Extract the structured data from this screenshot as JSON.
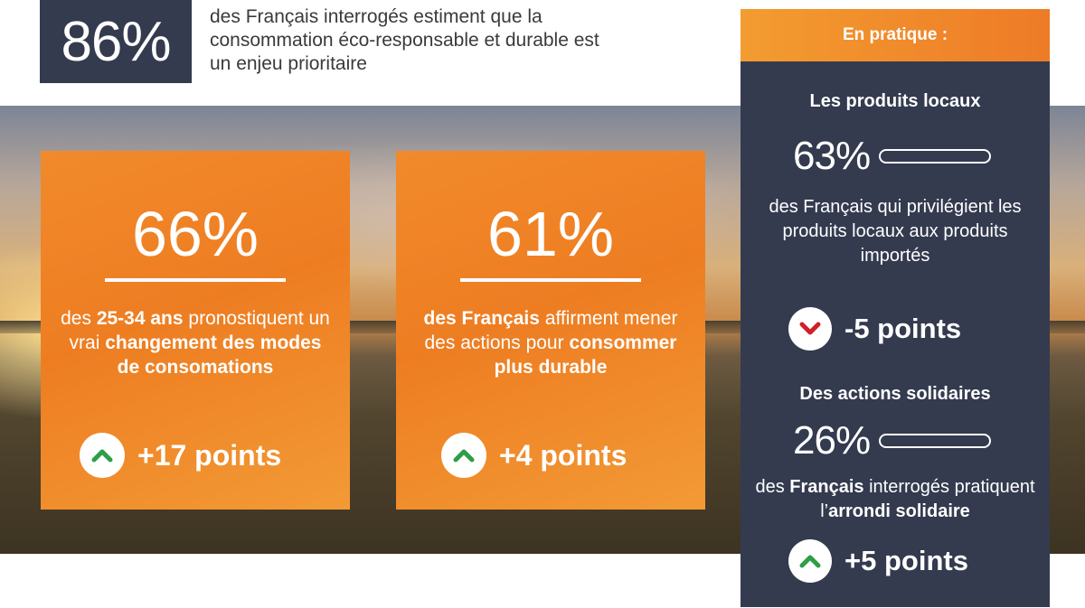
{
  "headline": {
    "percent": "86%",
    "text": "des Français interrogés estiment que la consommation éco-responsable et durable est un enjeu prioritaire"
  },
  "cards": [
    {
      "percent": "66%",
      "text_parts": [
        "des ",
        "25-34 ans",
        " pronostiquent un vrai ",
        "changement des modes de consomations"
      ],
      "trend": {
        "direction": "up",
        "label": "+17 points"
      }
    },
    {
      "percent": "61%",
      "text_parts": [
        "des Français",
        " affirment mener des actions pour ",
        "consommer plus durable"
      ],
      "trend": {
        "direction": "up",
        "label": "+4 points"
      }
    }
  ],
  "panel": {
    "header": "En pratique :",
    "sections": [
      {
        "title": "Les produits locaux",
        "percent": "63%",
        "bar_value": 0.63,
        "text": "des Français qui privilégient les produits locaux aux produits importés",
        "trend": {
          "direction": "down",
          "label": "-5 points"
        }
      },
      {
        "title": "Des actions solidaires",
        "percent": "26%",
        "bar_value": 0.26,
        "text_parts": [
          "des ",
          "Français",
          " interrogés pratiquent l’",
          "arrondi solidaire"
        ],
        "trend": {
          "direction": "up",
          "label": "+5 points"
        }
      }
    ]
  },
  "colors": {
    "navy": "#343b4f",
    "orange": "#ee7d22",
    "trend_up": "#2e9e47",
    "trend_down": "#d0202a"
  }
}
